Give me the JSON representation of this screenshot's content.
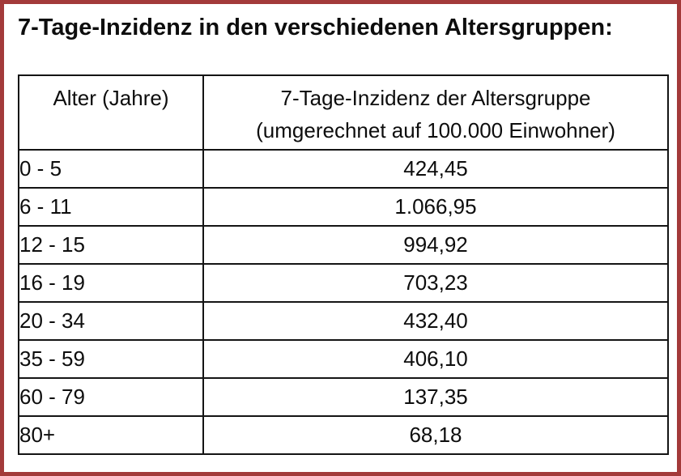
{
  "colors": {
    "frame_border": "#a33a3a",
    "table_border": "#141414",
    "text": "#0d0d0d",
    "background": "#ffffff"
  },
  "title": "7-Tage-Inzidenz in den verschiedenen Altersgruppen:",
  "table": {
    "header": {
      "age": "Alter (Jahre)",
      "incidence_line1": "7-Tage-Inzidenz der Altersgruppe",
      "incidence_line2": "(umgerechnet auf 100.000 Einwohner)"
    },
    "rows": [
      {
        "age": "0 - 5",
        "incidence": "424,45"
      },
      {
        "age": "6 - 11",
        "incidence": "1.066,95"
      },
      {
        "age": "12 - 15",
        "incidence": "994,92"
      },
      {
        "age": "16 - 19",
        "incidence": "703,23"
      },
      {
        "age": "20 - 34",
        "incidence": "432,40"
      },
      {
        "age": "35 - 59",
        "incidence": "406,10"
      },
      {
        "age": "60 - 79",
        "incidence": "137,35"
      },
      {
        "age": "80+",
        "incidence": "68,18"
      }
    ]
  },
  "chart_data": {
    "type": "table",
    "title": "7-Tage-Inzidenz in den verschiedenen Altersgruppen:",
    "columns": [
      "Alter (Jahre)",
      "7-Tage-Inzidenz der Altersgruppe (umgerechnet auf 100.000 Einwohner)"
    ],
    "categories": [
      "0 - 5",
      "6 - 11",
      "12 - 15",
      "16 - 19",
      "20 - 34",
      "35 - 59",
      "60 - 79",
      "80+"
    ],
    "values": [
      424.45,
      1066.95,
      994.92,
      703.23,
      432.4,
      406.1,
      137.35,
      68.18
    ]
  }
}
